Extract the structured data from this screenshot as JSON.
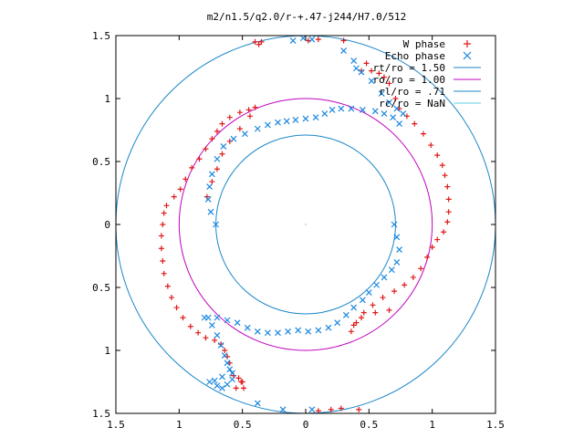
{
  "chart_data": {
    "type": "scatter",
    "title": "m2/n1.5/q2.0/r-+.47-j244/H7.0/512",
    "xlim": [
      -1.5,
      1.5
    ],
    "ylim": [
      -1.5,
      1.5
    ],
    "x_ticks": [
      {
        "value": -1.5,
        "label": "1.5"
      },
      {
        "value": -1,
        "label": "1"
      },
      {
        "value": -0.5,
        "label": "0.5"
      },
      {
        "value": 0,
        "label": "0"
      },
      {
        "value": 0.5,
        "label": "0.5"
      },
      {
        "value": 1,
        "label": "1"
      },
      {
        "value": 1.5,
        "label": "1.5"
      }
    ],
    "y_ticks": [
      {
        "value": 1.5,
        "label": "1.5"
      },
      {
        "value": 1,
        "label": "1"
      },
      {
        "value": 0.5,
        "label": "0.5"
      },
      {
        "value": 0,
        "label": "0"
      },
      {
        "value": -0.5,
        "label": "0.5"
      },
      {
        "value": -1,
        "label": "1"
      },
      {
        "value": -1.5,
        "label": "1.5"
      }
    ],
    "legend_position": "top-right",
    "circles": [
      {
        "name": "rt/ro = 1.50",
        "r": 1.5,
        "color": "#1a87c8"
      },
      {
        "name": "ro/ro = 1.00",
        "r": 1.0,
        "color": "#c000c0"
      },
      {
        "name": "rl/ro = .71",
        "r": 0.71,
        "color": "#1a87c8"
      },
      {
        "name": "rc/ro = NaN",
        "r": null,
        "color": "#5fd0e0"
      }
    ],
    "series": [
      {
        "name": "W phase",
        "marker": "plus",
        "color": "#e01818",
        "points": [
          [
            -0.4,
            1.45
          ],
          [
            -0.37,
            1.43
          ],
          [
            -0.35,
            1.45
          ],
          [
            0.02,
            1.46
          ],
          [
            0.1,
            1.47
          ],
          [
            0.3,
            1.46
          ],
          [
            0.44,
            1.22
          ],
          [
            0.48,
            1.28
          ],
          [
            0.52,
            1.22
          ],
          [
            0.58,
            1.2
          ],
          [
            0.62,
            1.17
          ],
          [
            0.66,
            1.12
          ],
          [
            0.71,
            1.0
          ],
          [
            0.74,
            0.92
          ],
          [
            0.8,
            0.86
          ],
          [
            0.86,
            0.8
          ],
          [
            0.93,
            0.72
          ],
          [
            0.99,
            0.63
          ],
          [
            1.04,
            0.55
          ],
          [
            1.08,
            0.47
          ],
          [
            1.1,
            0.39
          ],
          [
            1.12,
            0.3
          ],
          [
            1.13,
            0.2
          ],
          [
            1.13,
            0.1
          ],
          [
            1.12,
            0.02
          ],
          [
            1.09,
            -0.06
          ],
          [
            1.04,
            -0.12
          ],
          [
            1.0,
            -0.18
          ],
          [
            0.96,
            -0.26
          ],
          [
            0.91,
            -0.35
          ],
          [
            0.85,
            -0.42
          ],
          [
            0.78,
            -0.48
          ],
          [
            0.7,
            -0.53
          ],
          [
            0.61,
            -0.58
          ],
          [
            0.53,
            -0.64
          ],
          [
            0.46,
            -0.7
          ],
          [
            0.4,
            -0.78
          ],
          [
            0.36,
            -0.85
          ],
          [
            0.38,
            -0.8
          ],
          [
            0.44,
            -0.74
          ],
          [
            0.55,
            -0.7
          ],
          [
            0.66,
            -0.68
          ],
          [
            0.42,
            -1.47
          ],
          [
            0.28,
            -1.46
          ],
          [
            0.2,
            -1.47
          ],
          [
            0.1,
            -1.48
          ],
          [
            -0.49,
            -1.3
          ],
          [
            -0.51,
            -1.25
          ],
          [
            -0.55,
            -1.3
          ],
          [
            -0.5,
            -1.25
          ],
          [
            -0.57,
            -1.2
          ],
          [
            -0.53,
            -1.22
          ],
          [
            -0.6,
            -1.1
          ],
          [
            -0.62,
            -1.05
          ],
          [
            -0.64,
            -1.0
          ],
          [
            -0.67,
            -0.95
          ],
          [
            -0.72,
            -0.92
          ],
          [
            -0.79,
            -0.9
          ],
          [
            -0.85,
            -0.86
          ],
          [
            -0.91,
            -0.81
          ],
          [
            -0.97,
            -0.74
          ],
          [
            -1.02,
            -0.66
          ],
          [
            -1.06,
            -0.58
          ],
          [
            -1.09,
            -0.49
          ],
          [
            -1.12,
            -0.39
          ],
          [
            -1.13,
            -0.29
          ],
          [
            -1.14,
            -0.19
          ],
          [
            -1.14,
            -0.09
          ],
          [
            -1.13,
            0.0
          ],
          [
            -1.12,
            0.09
          ],
          [
            -1.1,
            0.15
          ],
          [
            -1.04,
            0.22
          ],
          [
            -0.99,
            0.28
          ],
          [
            -0.95,
            0.36
          ],
          [
            -0.9,
            0.45
          ],
          [
            -0.84,
            0.52
          ],
          [
            -0.79,
            0.6
          ],
          [
            -0.74,
            0.68
          ],
          [
            -0.7,
            0.74
          ],
          [
            -0.66,
            0.8
          ],
          [
            -0.6,
            0.85
          ],
          [
            -0.52,
            0.89
          ],
          [
            -0.45,
            0.91
          ],
          [
            -0.4,
            0.93
          ],
          [
            -0.44,
            0.86
          ],
          [
            -0.52,
            0.76
          ],
          [
            -0.6,
            0.66
          ],
          [
            -0.66,
            0.56
          ],
          [
            -0.7,
            0.44
          ],
          [
            -0.74,
            0.34
          ],
          [
            -0.78,
            0.22
          ]
        ]
      },
      {
        "name": "Echo phase",
        "marker": "cross",
        "color": "#1a87e0",
        "points": [
          [
            -0.02,
            1.48
          ],
          [
            0.05,
            1.47
          ],
          [
            -0.1,
            1.46
          ],
          [
            0.3,
            1.38
          ],
          [
            0.38,
            1.3
          ],
          [
            0.4,
            1.24
          ],
          [
            0.44,
            1.21
          ],
          [
            0.52,
            1.14
          ],
          [
            0.6,
            1.04
          ],
          [
            0.66,
            0.97
          ],
          [
            0.72,
            0.92
          ],
          [
            0.77,
            0.88
          ],
          [
            0.74,
            0.8
          ],
          [
            0.69,
            0.85
          ],
          [
            0.62,
            0.88
          ],
          [
            0.55,
            0.9
          ],
          [
            0.45,
            0.91
          ],
          [
            0.36,
            0.92
          ],
          [
            0.28,
            0.92
          ],
          [
            0.21,
            0.91
          ],
          [
            0.15,
            0.88
          ],
          [
            0.08,
            0.85
          ],
          [
            0.0,
            0.84
          ],
          [
            -0.08,
            0.83
          ],
          [
            -0.15,
            0.82
          ],
          [
            -0.22,
            0.81
          ],
          [
            -0.3,
            0.79
          ],
          [
            -0.38,
            0.76
          ],
          [
            -0.48,
            0.72
          ],
          [
            -0.57,
            0.68
          ],
          [
            -0.65,
            0.62
          ],
          [
            -0.7,
            0.52
          ],
          [
            -0.74,
            0.4
          ],
          [
            -0.76,
            0.3
          ],
          [
            -0.77,
            0.2
          ],
          [
            -0.75,
            0.1
          ],
          [
            -0.71,
            0.0
          ],
          [
            0.7,
            0.0
          ],
          [
            0.72,
            -0.1
          ],
          [
            0.74,
            -0.2
          ],
          [
            0.72,
            -0.3
          ],
          [
            0.68,
            -0.36
          ],
          [
            0.62,
            -0.42
          ],
          [
            0.56,
            -0.48
          ],
          [
            0.5,
            -0.54
          ],
          [
            0.45,
            -0.6
          ],
          [
            0.38,
            -0.66
          ],
          [
            0.32,
            -0.72
          ],
          [
            0.25,
            -0.78
          ],
          [
            0.18,
            -0.82
          ],
          [
            0.1,
            -0.84
          ],
          [
            0.02,
            -0.85
          ],
          [
            -0.06,
            -0.84
          ],
          [
            -0.14,
            -0.85
          ],
          [
            -0.22,
            -0.86
          ],
          [
            -0.3,
            -0.86
          ],
          [
            -0.38,
            -0.85
          ],
          [
            -0.46,
            -0.82
          ],
          [
            -0.54,
            -0.78
          ],
          [
            -0.62,
            -0.76
          ],
          [
            -0.7,
            -0.74
          ],
          [
            -0.77,
            -0.74
          ],
          [
            -0.8,
            -0.74
          ],
          [
            -0.74,
            -0.8
          ],
          [
            -0.7,
            -0.88
          ],
          [
            -0.67,
            -0.96
          ],
          [
            -0.64,
            -1.04
          ],
          [
            -0.62,
            -1.1
          ],
          [
            -0.6,
            -1.15
          ],
          [
            -0.58,
            -1.18
          ],
          [
            -0.66,
            -1.21
          ],
          [
            -0.72,
            -1.24
          ],
          [
            -0.76,
            -1.25
          ],
          [
            -0.7,
            -1.28
          ],
          [
            -0.66,
            -1.3
          ],
          [
            -0.62,
            -1.27
          ],
          [
            -0.58,
            -1.23
          ],
          [
            -0.38,
            -1.42
          ],
          [
            -0.18,
            -1.47
          ],
          [
            0.05,
            -1.47
          ]
        ]
      }
    ]
  }
}
